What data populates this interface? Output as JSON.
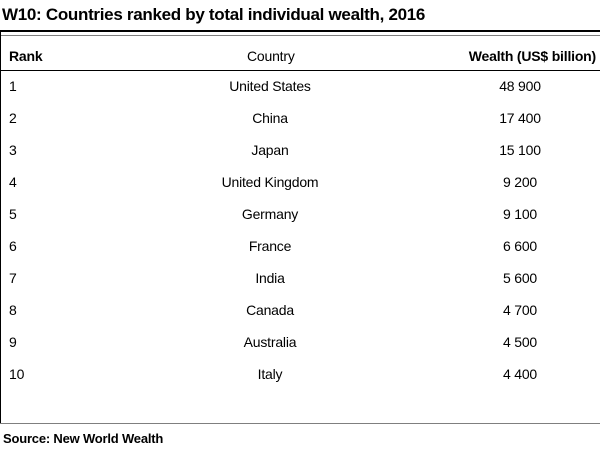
{
  "title": "W10: Countries ranked by total individual wealth, 2016",
  "source": "Source: New World Wealth",
  "chart_data": {
    "type": "table",
    "title": "W10: Countries ranked by total individual wealth, 2016",
    "columns": [
      "Rank",
      "Country",
      "Wealth (US$ billion)"
    ],
    "rows": [
      {
        "rank": "1",
        "country": "United States",
        "wealth": "48 900"
      },
      {
        "rank": "2",
        "country": "China",
        "wealth": "17 400"
      },
      {
        "rank": "3",
        "country": "Japan",
        "wealth": "15 100"
      },
      {
        "rank": "4",
        "country": "United Kingdom",
        "wealth": "9 200"
      },
      {
        "rank": "5",
        "country": "Germany",
        "wealth": "9 100"
      },
      {
        "rank": "6",
        "country": "France",
        "wealth": "6 600"
      },
      {
        "rank": "7",
        "country": "India",
        "wealth": "5 600"
      },
      {
        "rank": "8",
        "country": "Canada",
        "wealth": "4 700"
      },
      {
        "rank": "9",
        "country": "Australia",
        "wealth": "4 500"
      },
      {
        "rank": "10",
        "country": "Italy",
        "wealth": "4 400"
      }
    ],
    "source": "Source: New World Wealth"
  }
}
